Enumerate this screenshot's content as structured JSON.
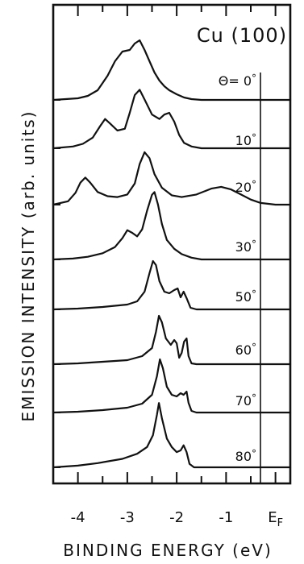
{
  "chart_data": {
    "type": "line",
    "title": "Cu (100)",
    "xlabel": "BINDING ENERGY  (eV)",
    "ylabel": "EMISSION INTENSITY  (arb. units)",
    "x_ticks": [
      "-4",
      "-3",
      "-2",
      "-1",
      "E_F"
    ],
    "xlim": [
      -4.5,
      0.3
    ],
    "ef_x": 0,
    "series": [
      {
        "name": "Θ= 0°",
        "label_parts": [
          "Θ= 0",
          "°"
        ],
        "points": [
          [
            -4.5,
            0.0
          ],
          [
            -4.0,
            0.02
          ],
          [
            -3.8,
            0.05
          ],
          [
            -3.6,
            0.12
          ],
          [
            -3.4,
            0.3
          ],
          [
            -3.25,
            0.48
          ],
          [
            -3.1,
            0.6
          ],
          [
            -2.95,
            0.62
          ],
          [
            -2.85,
            0.7
          ],
          [
            -2.75,
            0.74
          ],
          [
            -2.65,
            0.62
          ],
          [
            -2.55,
            0.48
          ],
          [
            -2.45,
            0.34
          ],
          [
            -2.35,
            0.24
          ],
          [
            -2.25,
            0.17
          ],
          [
            -2.15,
            0.12
          ],
          [
            -2.0,
            0.07
          ],
          [
            -1.85,
            0.03
          ],
          [
            -1.7,
            0.01
          ],
          [
            -1.5,
            0.0
          ],
          [
            0.3,
            0.0
          ]
        ]
      },
      {
        "name": "10°",
        "label_parts": [
          "10",
          "°"
        ],
        "points": [
          [
            -4.5,
            0.0
          ],
          [
            -4.1,
            0.02
          ],
          [
            -3.9,
            0.05
          ],
          [
            -3.7,
            0.12
          ],
          [
            -3.55,
            0.25
          ],
          [
            -3.45,
            0.33
          ],
          [
            -3.35,
            0.28
          ],
          [
            -3.2,
            0.2
          ],
          [
            -3.05,
            0.22
          ],
          [
            -2.95,
            0.4
          ],
          [
            -2.85,
            0.6
          ],
          [
            -2.75,
            0.66
          ],
          [
            -2.65,
            0.55
          ],
          [
            -2.5,
            0.38
          ],
          [
            -2.35,
            0.33
          ],
          [
            -2.25,
            0.38
          ],
          [
            -2.15,
            0.4
          ],
          [
            -2.05,
            0.3
          ],
          [
            -1.95,
            0.15
          ],
          [
            -1.85,
            0.06
          ],
          [
            -1.7,
            0.02
          ],
          [
            -1.5,
            0.0
          ],
          [
            0.3,
            0.0
          ]
        ]
      },
      {
        "name": "20°",
        "label_parts": [
          "20",
          "°"
        ],
        "points": [
          [
            -4.5,
            0.0
          ],
          [
            -4.2,
            0.04
          ],
          [
            -4.05,
            0.14
          ],
          [
            -3.95,
            0.26
          ],
          [
            -3.85,
            0.32
          ],
          [
            -3.75,
            0.26
          ],
          [
            -3.6,
            0.15
          ],
          [
            -3.4,
            0.1
          ],
          [
            -3.2,
            0.09
          ],
          [
            -3.0,
            0.12
          ],
          [
            -2.85,
            0.25
          ],
          [
            -2.75,
            0.48
          ],
          [
            -2.65,
            0.62
          ],
          [
            -2.55,
            0.55
          ],
          [
            -2.45,
            0.36
          ],
          [
            -2.3,
            0.2
          ],
          [
            -2.1,
            0.11
          ],
          [
            -1.9,
            0.09
          ],
          [
            -1.6,
            0.12
          ],
          [
            -1.3,
            0.19
          ],
          [
            -1.1,
            0.21
          ],
          [
            -0.9,
            0.18
          ],
          [
            -0.7,
            0.12
          ],
          [
            -0.5,
            0.06
          ],
          [
            -0.3,
            0.02
          ],
          [
            0.0,
            0.0
          ],
          [
            0.3,
            0.0
          ]
        ]
      },
      {
        "name": "30°",
        "label_parts": [
          "30",
          "°"
        ],
        "points": [
          [
            -4.5,
            0.0
          ],
          [
            -4.1,
            0.01
          ],
          [
            -3.8,
            0.03
          ],
          [
            -3.5,
            0.07
          ],
          [
            -3.25,
            0.14
          ],
          [
            -3.1,
            0.24
          ],
          [
            -3.0,
            0.33
          ],
          [
            -2.9,
            0.3
          ],
          [
            -2.8,
            0.26
          ],
          [
            -2.7,
            0.34
          ],
          [
            -2.6,
            0.55
          ],
          [
            -2.5,
            0.73
          ],
          [
            -2.45,
            0.76
          ],
          [
            -2.38,
            0.62
          ],
          [
            -2.3,
            0.4
          ],
          [
            -2.2,
            0.22
          ],
          [
            -2.05,
            0.12
          ],
          [
            -1.9,
            0.06
          ],
          [
            -1.7,
            0.02
          ],
          [
            -1.5,
            0.0
          ],
          [
            0.3,
            0.0
          ]
        ]
      },
      {
        "name": "50°",
        "label_parts": [
          "50",
          "°"
        ],
        "points": [
          [
            -4.5,
            0.0
          ],
          [
            -4.0,
            0.01
          ],
          [
            -3.5,
            0.03
          ],
          [
            -3.0,
            0.06
          ],
          [
            -2.8,
            0.1
          ],
          [
            -2.65,
            0.22
          ],
          [
            -2.55,
            0.45
          ],
          [
            -2.48,
            0.6
          ],
          [
            -2.42,
            0.55
          ],
          [
            -2.35,
            0.35
          ],
          [
            -2.25,
            0.22
          ],
          [
            -2.15,
            0.2
          ],
          [
            -2.05,
            0.24
          ],
          [
            -1.98,
            0.26
          ],
          [
            -1.92,
            0.15
          ],
          [
            -1.86,
            0.22
          ],
          [
            -1.8,
            0.14
          ],
          [
            -1.72,
            0.02
          ],
          [
            -1.6,
            0.0
          ],
          [
            0.3,
            0.0
          ]
        ]
      },
      {
        "name": "60°",
        "label_parts": [
          "60",
          "°"
        ],
        "points": [
          [
            -4.5,
            0.0
          ],
          [
            -4.0,
            0.01
          ],
          [
            -3.5,
            0.03
          ],
          [
            -3.0,
            0.05
          ],
          [
            -2.7,
            0.1
          ],
          [
            -2.5,
            0.2
          ],
          [
            -2.42,
            0.4
          ],
          [
            -2.36,
            0.6
          ],
          [
            -2.3,
            0.52
          ],
          [
            -2.22,
            0.32
          ],
          [
            -2.12,
            0.24
          ],
          [
            -2.05,
            0.3
          ],
          [
            -2.0,
            0.26
          ],
          [
            -1.95,
            0.08
          ],
          [
            -1.9,
            0.14
          ],
          [
            -1.85,
            0.28
          ],
          [
            -1.8,
            0.32
          ],
          [
            -1.76,
            0.1
          ],
          [
            -1.7,
            0.01
          ],
          [
            -1.6,
            0.0
          ],
          [
            0.3,
            0.0
          ]
        ]
      },
      {
        "name": "70°",
        "label_parts": [
          "70",
          "°"
        ],
        "points": [
          [
            -4.5,
            0.0
          ],
          [
            -4.0,
            0.01
          ],
          [
            -3.5,
            0.03
          ],
          [
            -3.0,
            0.06
          ],
          [
            -2.7,
            0.11
          ],
          [
            -2.5,
            0.22
          ],
          [
            -2.4,
            0.45
          ],
          [
            -2.34,
            0.66
          ],
          [
            -2.28,
            0.55
          ],
          [
            -2.2,
            0.32
          ],
          [
            -2.1,
            0.22
          ],
          [
            -2.0,
            0.2
          ],
          [
            -1.92,
            0.24
          ],
          [
            -1.86,
            0.22
          ],
          [
            -1.8,
            0.26
          ],
          [
            -1.76,
            0.12
          ],
          [
            -1.7,
            0.02
          ],
          [
            -1.6,
            0.0
          ],
          [
            0.3,
            0.0
          ]
        ]
      },
      {
        "name": "80°",
        "label_parts": [
          "80",
          "°"
        ],
        "points": [
          [
            -4.5,
            0.0
          ],
          [
            -4.0,
            0.02
          ],
          [
            -3.6,
            0.05
          ],
          [
            -3.1,
            0.1
          ],
          [
            -2.8,
            0.16
          ],
          [
            -2.6,
            0.24
          ],
          [
            -2.48,
            0.38
          ],
          [
            -2.4,
            0.62
          ],
          [
            -2.36,
            0.76
          ],
          [
            -2.3,
            0.58
          ],
          [
            -2.2,
            0.34
          ],
          [
            -2.1,
            0.24
          ],
          [
            -2.0,
            0.18
          ],
          [
            -1.92,
            0.2
          ],
          [
            -1.86,
            0.26
          ],
          [
            -1.8,
            0.18
          ],
          [
            -1.74,
            0.04
          ],
          [
            -1.65,
            0.0
          ],
          [
            0.3,
            0.0
          ]
        ]
      }
    ]
  }
}
